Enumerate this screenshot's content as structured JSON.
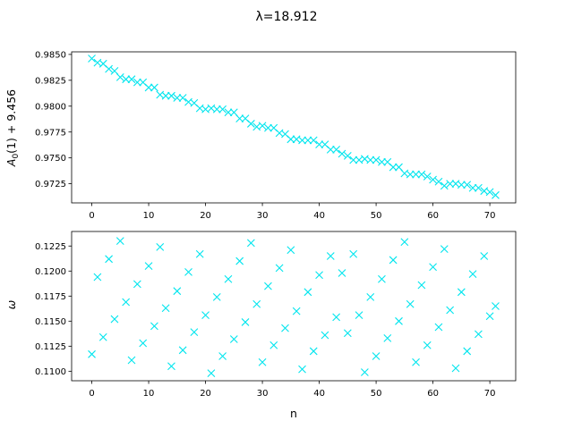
{
  "figure_title_text": "λ=18.912",
  "colors": {
    "marker": "#00e5ee",
    "axis": "#000000",
    "background": "#ffffff"
  },
  "chart_data": [
    {
      "type": "scatter",
      "marker": "x",
      "title": "λ=18.912",
      "xlabel": "",
      "ylabel_main": "A",
      "ylabel_sub": "0",
      "ylabel_rest": "(1) + 9.456",
      "xlim": [
        -3.55,
        74.55
      ],
      "ylim": [
        0.97065,
        0.98525
      ],
      "xticks": [
        0,
        10,
        20,
        30,
        40,
        50,
        60,
        70
      ],
      "yticks": [
        0.9725,
        0.975,
        0.9775,
        0.98,
        0.9825,
        0.985
      ],
      "ytick_labels": [
        "0.9725",
        "0.9750",
        "0.9775",
        "0.9800",
        "0.9825",
        "0.9850"
      ],
      "grid": false,
      "x": [
        0,
        1,
        2,
        3,
        4,
        5,
        6,
        7,
        8,
        9,
        10,
        11,
        12,
        13,
        14,
        15,
        16,
        17,
        18,
        19,
        20,
        21,
        22,
        23,
        24,
        25,
        26,
        27,
        28,
        29,
        30,
        31,
        32,
        33,
        34,
        35,
        36,
        37,
        38,
        39,
        40,
        41,
        42,
        43,
        44,
        45,
        46,
        47,
        48,
        49,
        50,
        51,
        52,
        53,
        54,
        55,
        56,
        57,
        58,
        59,
        60,
        61,
        62,
        63,
        64,
        65,
        66,
        67,
        68,
        69,
        70,
        71
      ],
      "y": [
        0.9846,
        0.9842,
        0.9841,
        0.9836,
        0.9834,
        0.9828,
        0.9826,
        0.9826,
        0.9823,
        0.9823,
        0.9818,
        0.9818,
        0.9811,
        0.981,
        0.981,
        0.9808,
        0.9808,
        0.9804,
        0.9803,
        0.9798,
        0.9797,
        0.9798,
        0.9797,
        0.9797,
        0.9794,
        0.9794,
        0.9788,
        0.9788,
        0.9783,
        0.978,
        0.9781,
        0.9779,
        0.9779,
        0.9774,
        0.9773,
        0.9768,
        0.9768,
        0.9767,
        0.9767,
        0.9767,
        0.9763,
        0.9763,
        0.9758,
        0.9758,
        0.9754,
        0.9752,
        0.9748,
        0.9748,
        0.9749,
        0.9748,
        0.9748,
        0.9746,
        0.9746,
        0.9741,
        0.9741,
        0.9735,
        0.9734,
        0.9734,
        0.9734,
        0.9732,
        0.9729,
        0.9727,
        0.9723,
        0.9725,
        0.9725,
        0.9724,
        0.9724,
        0.9721,
        0.9721,
        0.9718,
        0.9717,
        0.9714
      ]
    },
    {
      "type": "scatter",
      "marker": "x",
      "xlabel": "n",
      "ylabel": "ω",
      "xlim": [
        -3.55,
        74.55
      ],
      "ylim": [
        0.10905,
        0.12395
      ],
      "xticks": [
        0,
        10,
        20,
        30,
        40,
        50,
        60,
        70
      ],
      "yticks": [
        0.11,
        0.1125,
        0.115,
        0.1175,
        0.12,
        0.1225
      ],
      "ytick_labels": [
        "0.1100",
        "0.1125",
        "0.1150",
        "0.1175",
        "0.1200",
        "0.1225"
      ],
      "grid": false,
      "x": [
        0,
        1,
        2,
        3,
        4,
        5,
        6,
        7,
        8,
        9,
        10,
        11,
        12,
        13,
        14,
        15,
        16,
        17,
        18,
        19,
        20,
        21,
        22,
        23,
        24,
        25,
        26,
        27,
        28,
        29,
        30,
        31,
        32,
        33,
        34,
        35,
        36,
        37,
        38,
        39,
        40,
        41,
        42,
        43,
        44,
        45,
        46,
        47,
        48,
        49,
        50,
        51,
        52,
        53,
        54,
        55,
        56,
        57,
        58,
        59,
        60,
        61,
        62,
        63,
        64,
        65,
        66,
        67,
        68,
        69,
        70,
        71
      ],
      "y": [
        0.1117,
        0.1194,
        0.1134,
        0.1212,
        0.1152,
        0.123,
        0.1169,
        0.1111,
        0.1187,
        0.1128,
        0.1205,
        0.1145,
        0.1224,
        0.1163,
        0.1105,
        0.118,
        0.1121,
        0.1199,
        0.1139,
        0.1217,
        0.1156,
        0.1098,
        0.1174,
        0.1115,
        0.1192,
        0.1132,
        0.121,
        0.1149,
        0.1228,
        0.1167,
        0.1109,
        0.1185,
        0.1126,
        0.1203,
        0.1143,
        0.1221,
        0.116,
        0.1102,
        0.1179,
        0.112,
        0.1196,
        0.1136,
        0.1215,
        0.1154,
        0.1198,
        0.1138,
        0.1217,
        0.1156,
        0.1099,
        0.1174,
        0.1115,
        0.1192,
        0.1133,
        0.1211,
        0.115,
        0.1229,
        0.1167,
        0.1109,
        0.1186,
        0.1126,
        0.1204,
        0.1144,
        0.1222,
        0.1161,
        0.1103,
        0.1179,
        0.112,
        0.1197,
        0.1137,
        0.1215,
        0.1155,
        0.1165
      ]
    }
  ]
}
